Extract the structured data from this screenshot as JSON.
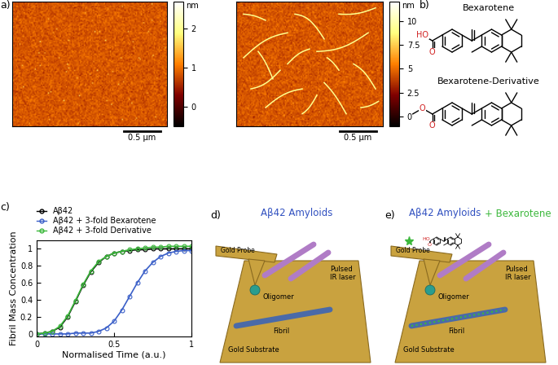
{
  "panel_labels": [
    "a)",
    "b)",
    "c)",
    "d)",
    "e)"
  ],
  "afm": [
    {
      "unit": "nm",
      "colorbar_range": [
        -0.5,
        2.7
      ],
      "colorbar_ticks": [
        0,
        1,
        2
      ],
      "scale_bar": "0.5 µm"
    },
    {
      "unit": "nm",
      "colorbar_range": [
        -1,
        12
      ],
      "colorbar_ticks": [
        0,
        2.5,
        5,
        7.5,
        10
      ],
      "scale_bar": "0.5 µm"
    }
  ],
  "structures": [
    {
      "name": "Bexarotene",
      "atoms": [
        "HO",
        "O"
      ]
    },
    {
      "name": "Bexarotene-Derivative",
      "atoms": [
        "O",
        "O"
      ]
    }
  ],
  "chart_data": {
    "type": "line",
    "xlabel": "Normalised Time (a.u.)",
    "ylabel": "Fibril Mass Concentration",
    "x": [
      0,
      0.05,
      0.1,
      0.15,
      0.2,
      0.25,
      0.3,
      0.35,
      0.4,
      0.45,
      0.5,
      0.55,
      0.6,
      0.65,
      0.7,
      0.75,
      0.8,
      0.85,
      0.9,
      0.95,
      1.0
    ],
    "series": [
      {
        "name": "Aβ42",
        "color": "#000000",
        "marker": "o",
        "line_style": "solid",
        "values": [
          0,
          0.01,
          0.03,
          0.08,
          0.2,
          0.38,
          0.57,
          0.73,
          0.84,
          0.91,
          0.95,
          0.97,
          0.98,
          0.99,
          0.99,
          1.0,
          1.0,
          1.0,
          1.0,
          1.0,
          1.0
        ]
      },
      {
        "name": "Aβ42 + 3-fold Bexarotene",
        "color": "#3a5fc8",
        "marker": "o",
        "line_style": "solid",
        "values": [
          0,
          0,
          0,
          0,
          0,
          0.01,
          0.01,
          0.01,
          0.03,
          0.07,
          0.15,
          0.28,
          0.44,
          0.6,
          0.74,
          0.84,
          0.91,
          0.95,
          0.97,
          0.98,
          0.98
        ]
      },
      {
        "name": "Aβ42 + 3-fold Derivative",
        "color": "#3cb83c",
        "marker": "o",
        "line_style": "solid",
        "values": [
          0,
          0.01,
          0.03,
          0.09,
          0.21,
          0.39,
          0.58,
          0.74,
          0.85,
          0.91,
          0.95,
          0.97,
          0.99,
          1.0,
          1.01,
          1.02,
          1.02,
          1.03,
          1.03,
          1.03,
          1.03
        ]
      }
    ],
    "xlim": [
      0,
      1
    ],
    "xticks": [
      0,
      0.5,
      1
    ],
    "ylim": [
      -0.03,
      1.1
    ],
    "yticks": [
      0,
      0.2,
      0.4,
      0.6,
      0.8,
      1
    ],
    "legend": "upper left"
  },
  "diagrams": [
    {
      "title": [
        "Aβ42 Amyloids"
      ],
      "labels": {
        "probe": "Gold Probe",
        "laser": "Pulsed\nIR laser",
        "oligomer": "Oligomer",
        "fibril": "Fibril",
        "substrate": "Gold Substrate"
      }
    },
    {
      "title": [
        "Aβ42 Amyloids",
        "+ Bexarotene"
      ],
      "labels": {
        "probe": "Gold Probe",
        "laser": "Pulsed\nIR laser",
        "oligomer": "Oligomer",
        "fibril": "Fibril",
        "substrate": "Gold Substrate"
      }
    }
  ]
}
